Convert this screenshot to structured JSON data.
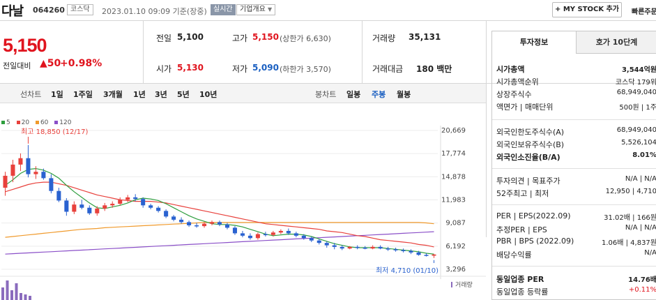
{
  "header": {
    "stock_name": "다날",
    "stock_code": "064260",
    "market": "코스닥",
    "timestamp": "2023.01.10 09:09  기준(장중)",
    "live_badge": "실시간",
    "company_info": "기업개요",
    "mystock_button": "+ MY STOCK 추가",
    "quick_order": "빠른주문"
  },
  "price": {
    "current": "5,150",
    "change_label": "전일대비",
    "change_amount": "▲50",
    "change_percent": "+0.98%"
  },
  "quote": {
    "prev_close_label": "전일",
    "prev_close": "5,100",
    "open_label": "시가",
    "open": "5,130",
    "high_label": "고가",
    "high": "5,150",
    "upper_limit": "(상한가 6,630)",
    "low_label": "저가",
    "low": "5,090",
    "lower_limit": "(하한가 3,570)",
    "volume_label": "거래량",
    "volume": "35,131",
    "value_label": "거래대금",
    "value": "180 백만"
  },
  "toolbar": {
    "line_chart_label": "선차트",
    "line_periods": [
      "1일",
      "1주일",
      "3개월",
      "1년",
      "3년",
      "5년",
      "10년"
    ],
    "candle_label": "봉차트",
    "candle_periods": [
      "일봉",
      "주봉",
      "월봉"
    ],
    "active_candle": "주봉"
  },
  "legend": [
    {
      "name": "5",
      "color": "#2e9e3e"
    },
    {
      "name": "20",
      "color": "#e8413c"
    },
    {
      "name": "60",
      "color": "#f09a2c"
    },
    {
      "name": "120",
      "color": "#8a4fc8"
    }
  ],
  "chart_annotations": {
    "high": "최고 18,850 (12/17)",
    "low": "최저 4,710 (01/10)",
    "volume_label": "거래량"
  },
  "chart_data": {
    "type": "candlestick",
    "y_ticks": [
      "20,669",
      "17,774",
      "14,878",
      "11,983",
      "9,087",
      "6,192",
      "3,296"
    ],
    "ylim": [
      3296,
      20669
    ],
    "candles": [
      {
        "o": 13500,
        "h": 15500,
        "l": 12500,
        "c": 15000
      },
      {
        "o": 15000,
        "h": 17000,
        "l": 14200,
        "c": 16400
      },
      {
        "o": 16400,
        "h": 17800,
        "l": 15600,
        "c": 17200
      },
      {
        "o": 17200,
        "h": 18850,
        "l": 14800,
        "c": 15200
      },
      {
        "o": 15200,
        "h": 16200,
        "l": 14600,
        "c": 15500
      },
      {
        "o": 15500,
        "h": 15900,
        "l": 14500,
        "c": 14700
      },
      {
        "o": 14700,
        "h": 15200,
        "l": 12800,
        "c": 13100
      },
      {
        "o": 13100,
        "h": 13500,
        "l": 11700,
        "c": 11900
      },
      {
        "o": 11900,
        "h": 12200,
        "l": 10000,
        "c": 10500
      },
      {
        "o": 10500,
        "h": 11800,
        "l": 10200,
        "c": 11400
      },
      {
        "o": 11400,
        "h": 12000,
        "l": 10800,
        "c": 11000
      },
      {
        "o": 11000,
        "h": 11300,
        "l": 10100,
        "c": 10300
      },
      {
        "o": 10300,
        "h": 11200,
        "l": 10000,
        "c": 10900
      },
      {
        "o": 10900,
        "h": 11600,
        "l": 10600,
        "c": 11300
      },
      {
        "o": 11300,
        "h": 11800,
        "l": 11000,
        "c": 11500
      },
      {
        "o": 11500,
        "h": 12300,
        "l": 11300,
        "c": 12000
      },
      {
        "o": 12000,
        "h": 12600,
        "l": 11700,
        "c": 12300
      },
      {
        "o": 12300,
        "h": 12700,
        "l": 11800,
        "c": 12100
      },
      {
        "o": 12100,
        "h": 12300,
        "l": 11000,
        "c": 11300
      },
      {
        "o": 11300,
        "h": 11500,
        "l": 10800,
        "c": 11000
      },
      {
        "o": 11000,
        "h": 11200,
        "l": 10400,
        "c": 10600
      },
      {
        "o": 10600,
        "h": 10800,
        "l": 9700,
        "c": 9900
      },
      {
        "o": 9900,
        "h": 10100,
        "l": 9300,
        "c": 9500
      },
      {
        "o": 9500,
        "h": 9800,
        "l": 9000,
        "c": 9200
      },
      {
        "o": 9200,
        "h": 9400,
        "l": 8600,
        "c": 8800
      },
      {
        "o": 8800,
        "h": 9100,
        "l": 8500,
        "c": 8700
      },
      {
        "o": 8700,
        "h": 9200,
        "l": 8500,
        "c": 9000
      },
      {
        "o": 9000,
        "h": 9400,
        "l": 8800,
        "c": 9200
      },
      {
        "o": 9200,
        "h": 9400,
        "l": 8700,
        "c": 8900
      },
      {
        "o": 8900,
        "h": 9100,
        "l": 8300,
        "c": 8500
      },
      {
        "o": 8500,
        "h": 8700,
        "l": 7600,
        "c": 7800
      },
      {
        "o": 7800,
        "h": 8100,
        "l": 7300,
        "c": 7500
      },
      {
        "o": 7500,
        "h": 7800,
        "l": 7000,
        "c": 7200
      },
      {
        "o": 7200,
        "h": 7900,
        "l": 7000,
        "c": 7700
      },
      {
        "o": 7700,
        "h": 8000,
        "l": 7400,
        "c": 7600
      },
      {
        "o": 7600,
        "h": 8100,
        "l": 7400,
        "c": 7900
      },
      {
        "o": 7900,
        "h": 8300,
        "l": 7700,
        "c": 8100
      },
      {
        "o": 8100,
        "h": 8400,
        "l": 7600,
        "c": 7800
      },
      {
        "o": 7800,
        "h": 8000,
        "l": 7300,
        "c": 7500
      },
      {
        "o": 7500,
        "h": 7700,
        "l": 7000,
        "c": 7200
      },
      {
        "o": 7200,
        "h": 7400,
        "l": 6700,
        "c": 6900
      },
      {
        "o": 6900,
        "h": 7100,
        "l": 6400,
        "c": 6600
      },
      {
        "o": 6600,
        "h": 6800,
        "l": 6000,
        "c": 6300
      },
      {
        "o": 6300,
        "h": 6600,
        "l": 5800,
        "c": 6100
      },
      {
        "o": 6100,
        "h": 6300,
        "l": 5700,
        "c": 5900
      },
      {
        "o": 5900,
        "h": 6200,
        "l": 5800,
        "c": 6100
      },
      {
        "o": 6100,
        "h": 6300,
        "l": 5800,
        "c": 6000
      },
      {
        "o": 6000,
        "h": 6200,
        "l": 5800,
        "c": 5900
      },
      {
        "o": 5900,
        "h": 6300,
        "l": 5800,
        "c": 6100
      },
      {
        "o": 6100,
        "h": 6300,
        "l": 5800,
        "c": 5900
      },
      {
        "o": 5900,
        "h": 6100,
        "l": 5600,
        "c": 5800
      },
      {
        "o": 5800,
        "h": 6000,
        "l": 5500,
        "c": 5700
      },
      {
        "o": 5700,
        "h": 5900,
        "l": 5400,
        "c": 5600
      },
      {
        "o": 5600,
        "h": 5800,
        "l": 5200,
        "c": 5400
      },
      {
        "o": 5400,
        "h": 5600,
        "l": 5000,
        "c": 5100
      },
      {
        "o": 5100,
        "h": 5300,
        "l": 4900,
        "c": 5000
      },
      {
        "o": 5000,
        "h": 5200,
        "l": 4710,
        "c": 5150
      }
    ],
    "ma5": [
      13800,
      14500,
      15300,
      15800,
      15900,
      15700,
      15300,
      14700,
      13800,
      13000,
      12300,
      11600,
      11000,
      10900,
      11100,
      11300,
      11600,
      12000,
      12200,
      12100,
      11900,
      11500,
      11000,
      10500,
      10000,
      9600,
      9300,
      9000,
      8900,
      8900,
      8800,
      8600,
      8300,
      8000,
      7700,
      7500,
      7600,
      7700,
      7700,
      7600,
      7400,
      7100,
      6800,
      6500,
      6300,
      6100,
      6000,
      6000,
      6000,
      6000,
      5900,
      5800,
      5700,
      5600,
      5500,
      5300,
      5200
    ],
    "ma20": [
      13000,
      13300,
      13600,
      13900,
      14100,
      14200,
      14200,
      14000,
      13800,
      13500,
      13200,
      12900,
      12600,
      12400,
      12200,
      12000,
      11900,
      11800,
      11800,
      11800,
      11700,
      11600,
      11400,
      11200,
      11000,
      10800,
      10600,
      10400,
      10200,
      10000,
      9800,
      9600,
      9400,
      9200,
      9000,
      8900,
      8800,
      8700,
      8600,
      8500,
      8400,
      8300,
      8100,
      8000,
      7900,
      7700,
      7500,
      7400,
      7200,
      7000,
      6900,
      6800,
      6700,
      6600,
      6400,
      6300,
      6100
    ],
    "ma60": [
      7300,
      7400,
      7500,
      7600,
      7700,
      7800,
      7900,
      8000,
      8100,
      8200,
      8300,
      8350,
      8400,
      8500,
      8550,
      8600,
      8650,
      8700,
      8750,
      8800,
      8850,
      8900,
      8950,
      9000,
      9050,
      9100,
      9150,
      9150,
      9150,
      9150,
      9150,
      9150,
      9150,
      9150,
      9150,
      9150,
      9150,
      9150,
      9150,
      9150,
      9150,
      9150,
      9150,
      9150,
      9150,
      9150,
      9150,
      9150,
      9150,
      9150,
      9150,
      9150,
      9150,
      9150,
      9150,
      9100,
      9000
    ],
    "ma120": [
      5200,
      5250,
      5300,
      5350,
      5400,
      5450,
      5500,
      5550,
      5600,
      5650,
      5700,
      5750,
      5800,
      5850,
      5900,
      5950,
      6000,
      6050,
      6100,
      6150,
      6200,
      6250,
      6300,
      6350,
      6400,
      6450,
      6500,
      6550,
      6600,
      6650,
      6700,
      6750,
      6800,
      6850,
      6900,
      6950,
      7000,
      7050,
      7100,
      7150,
      7200,
      7250,
      7300,
      7350,
      7400,
      7450,
      7500,
      7550,
      7600,
      7650,
      7700,
      7750,
      7800,
      7850,
      7900,
      7950,
      8000
    ]
  },
  "side": {
    "tab_active": "투자정보",
    "tab_other": "호가 10단계",
    "rows_group1": [
      {
        "label": "시가총액",
        "value": "3,544억원",
        "bold": true
      },
      {
        "label": "시가총액순위",
        "value": "코스닥  179위",
        "bold": false
      },
      {
        "label": "상장주식수",
        "value": "68,949,040",
        "bold": false
      },
      {
        "label": "액면가 | 매매단위",
        "value": "500원 | 1주",
        "bold": false
      }
    ],
    "rows_group2": [
      {
        "label": "외국인한도주식수(A)",
        "value": "68,949,040",
        "bold": false
      },
      {
        "label": "외국인보유주식수(B)",
        "value": "5,526,104",
        "bold": false
      },
      {
        "label": "외국인소진율(B/A)",
        "value": "8.01%",
        "bold": true
      }
    ],
    "rows_group3": [
      {
        "label": "투자의견 | 목표주가",
        "value": "N/A | N/A",
        "bold": false
      },
      {
        "label": "52주최고 | 최저",
        "value": "12,950 | 4,710",
        "bold": false
      }
    ],
    "rows_group4": [
      {
        "label": "PER | EPS(2022.09)",
        "value": "31.02배 | 166원",
        "bold": false
      },
      {
        "label": "추정PER | EPS",
        "value": "N/A | N/A",
        "bold": false
      },
      {
        "label": "PBR | BPS (2022.09)",
        "value": "1.06배 | 4,837원",
        "bold": false
      },
      {
        "label": "배당수익률",
        "value": "N/A",
        "bold": false
      }
    ],
    "rows_group5": [
      {
        "label": "동일업종 PER",
        "value": "14.76배",
        "bold": true
      },
      {
        "label": "동일업종 등락률",
        "value": "+0.11%",
        "bold": false
      }
    ]
  }
}
